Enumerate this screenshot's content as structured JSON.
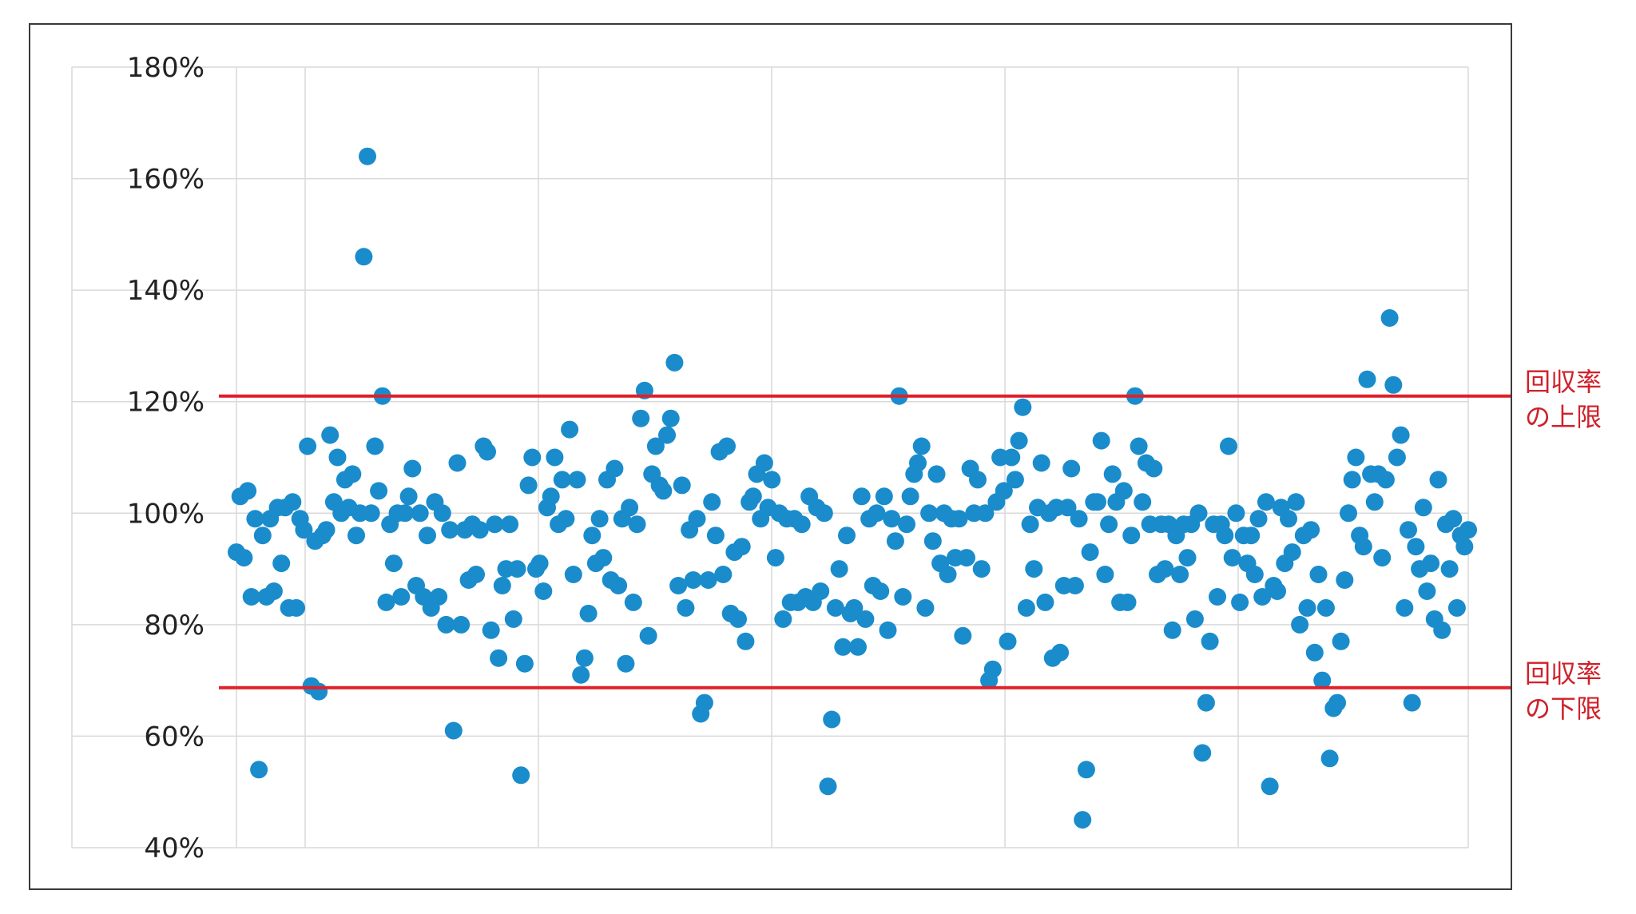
{
  "chart_data": {
    "type": "scatter",
    "ylim": [
      0.4,
      1.8
    ],
    "y_ticks": [
      "40%",
      "60%",
      "80%",
      "100%",
      "120%",
      "140%",
      "160%",
      "180%"
    ],
    "grid": true,
    "marker_color": "#1a8ccc",
    "reference_line_color": "#e0202a",
    "reference_lines": [
      {
        "y": 1.21,
        "label_line1": "回収率",
        "label_line2": "の上限"
      },
      {
        "y": 0.687,
        "label_line1": "回収率",
        "label_line2": "の下限"
      }
    ],
    "points": [
      {
        "x": 1,
        "y": 0.93
      },
      {
        "x": 2,
        "y": 1.03
      },
      {
        "x": 3,
        "y": 0.92
      },
      {
        "x": 4,
        "y": 1.04
      },
      {
        "x": 5,
        "y": 0.85
      },
      {
        "x": 6,
        "y": 0.99
      },
      {
        "x": 7,
        "y": 0.54
      },
      {
        "x": 8,
        "y": 0.96
      },
      {
        "x": 9,
        "y": 0.85
      },
      {
        "x": 10,
        "y": 0.99
      },
      {
        "x": 11,
        "y": 0.86
      },
      {
        "x": 12,
        "y": 1.01
      },
      {
        "x": 13,
        "y": 0.91
      },
      {
        "x": 14,
        "y": 1.01
      },
      {
        "x": 15,
        "y": 0.83
      },
      {
        "x": 16,
        "y": 1.02
      },
      {
        "x": 17,
        "y": 0.83
      },
      {
        "x": 18,
        "y": 0.99
      },
      {
        "x": 19,
        "y": 0.97
      },
      {
        "x": 20,
        "y": 1.12
      },
      {
        "x": 21,
        "y": 0.69
      },
      {
        "x": 22,
        "y": 0.95
      },
      {
        "x": 23,
        "y": 0.68
      },
      {
        "x": 24,
        "y": 0.96
      },
      {
        "x": 25,
        "y": 0.97
      },
      {
        "x": 26,
        "y": 1.14
      },
      {
        "x": 27,
        "y": 1.02
      },
      {
        "x": 28,
        "y": 1.1
      },
      {
        "x": 29,
        "y": 1.0
      },
      {
        "x": 30,
        "y": 1.06
      },
      {
        "x": 31,
        "y": 1.01
      },
      {
        "x": 32,
        "y": 1.07
      },
      {
        "x": 33,
        "y": 0.96
      },
      {
        "x": 34,
        "y": 1.0
      },
      {
        "x": 35,
        "y": 1.46
      },
      {
        "x": 36,
        "y": 1.64
      },
      {
        "x": 37,
        "y": 1.0
      },
      {
        "x": 38,
        "y": 1.12
      },
      {
        "x": 39,
        "y": 1.04
      },
      {
        "x": 40,
        "y": 1.21
      },
      {
        "x": 41,
        "y": 0.84
      },
      {
        "x": 42,
        "y": 0.98
      },
      {
        "x": 43,
        "y": 0.91
      },
      {
        "x": 44,
        "y": 1.0
      },
      {
        "x": 45,
        "y": 0.85
      },
      {
        "x": 46,
        "y": 1.0
      },
      {
        "x": 47,
        "y": 1.03
      },
      {
        "x": 48,
        "y": 1.08
      },
      {
        "x": 49,
        "y": 0.87
      },
      {
        "x": 50,
        "y": 1.0
      },
      {
        "x": 51,
        "y": 0.85
      },
      {
        "x": 52,
        "y": 0.96
      },
      {
        "x": 53,
        "y": 0.83
      },
      {
        "x": 54,
        "y": 1.02
      },
      {
        "x": 55,
        "y": 0.85
      },
      {
        "x": 56,
        "y": 1.0
      },
      {
        "x": 57,
        "y": 0.8
      },
      {
        "x": 58,
        "y": 0.97
      },
      {
        "x": 59,
        "y": 0.61
      },
      {
        "x": 60,
        "y": 1.09
      },
      {
        "x": 61,
        "y": 0.8
      },
      {
        "x": 62,
        "y": 0.97
      },
      {
        "x": 63,
        "y": 0.88
      },
      {
        "x": 64,
        "y": 0.98
      },
      {
        "x": 65,
        "y": 0.89
      },
      {
        "x": 66,
        "y": 0.97
      },
      {
        "x": 67,
        "y": 1.12
      },
      {
        "x": 68,
        "y": 1.11
      },
      {
        "x": 69,
        "y": 0.79
      },
      {
        "x": 70,
        "y": 0.98
      },
      {
        "x": 71,
        "y": 0.74
      },
      {
        "x": 72,
        "y": 0.87
      },
      {
        "x": 73,
        "y": 0.9
      },
      {
        "x": 74,
        "y": 0.98
      },
      {
        "x": 75,
        "y": 0.81
      },
      {
        "x": 76,
        "y": 0.9
      },
      {
        "x": 77,
        "y": 0.53
      },
      {
        "x": 78,
        "y": 0.73
      },
      {
        "x": 79,
        "y": 1.05
      },
      {
        "x": 80,
        "y": 1.1
      },
      {
        "x": 81,
        "y": 0.9
      },
      {
        "x": 82,
        "y": 0.91
      },
      {
        "x": 83,
        "y": 0.86
      },
      {
        "x": 84,
        "y": 1.01
      },
      {
        "x": 85,
        "y": 1.03
      },
      {
        "x": 86,
        "y": 1.1
      },
      {
        "x": 87,
        "y": 0.98
      },
      {
        "x": 88,
        "y": 1.06
      },
      {
        "x": 89,
        "y": 0.99
      },
      {
        "x": 90,
        "y": 1.15
      },
      {
        "x": 91,
        "y": 0.89
      },
      {
        "x": 92,
        "y": 1.06
      },
      {
        "x": 93,
        "y": 0.71
      },
      {
        "x": 94,
        "y": 0.74
      },
      {
        "x": 95,
        "y": 0.82
      },
      {
        "x": 96,
        "y": 0.96
      },
      {
        "x": 97,
        "y": 0.91
      },
      {
        "x": 98,
        "y": 0.99
      },
      {
        "x": 99,
        "y": 0.92
      },
      {
        "x": 100,
        "y": 1.06
      },
      {
        "x": 101,
        "y": 0.88
      },
      {
        "x": 102,
        "y": 1.08
      },
      {
        "x": 103,
        "y": 0.87
      },
      {
        "x": 104,
        "y": 0.99
      },
      {
        "x": 105,
        "y": 0.73
      },
      {
        "x": 106,
        "y": 1.01
      },
      {
        "x": 107,
        "y": 0.84
      },
      {
        "x": 108,
        "y": 0.98
      },
      {
        "x": 109,
        "y": 1.17
      },
      {
        "x": 110,
        "y": 1.22
      },
      {
        "x": 111,
        "y": 0.78
      },
      {
        "x": 112,
        "y": 1.07
      },
      {
        "x": 113,
        "y": 1.12
      },
      {
        "x": 114,
        "y": 1.05
      },
      {
        "x": 115,
        "y": 1.04
      },
      {
        "x": 116,
        "y": 1.14
      },
      {
        "x": 117,
        "y": 1.17
      },
      {
        "x": 118,
        "y": 1.27
      },
      {
        "x": 119,
        "y": 0.87
      },
      {
        "x": 120,
        "y": 1.05
      },
      {
        "x": 121,
        "y": 0.83
      },
      {
        "x": 122,
        "y": 0.97
      },
      {
        "x": 123,
        "y": 0.88
      },
      {
        "x": 124,
        "y": 0.99
      },
      {
        "x": 125,
        "y": 0.64
      },
      {
        "x": 126,
        "y": 0.66
      },
      {
        "x": 127,
        "y": 0.88
      },
      {
        "x": 128,
        "y": 1.02
      },
      {
        "x": 129,
        "y": 0.96
      },
      {
        "x": 130,
        "y": 1.11
      },
      {
        "x": 131,
        "y": 0.89
      },
      {
        "x": 132,
        "y": 1.12
      },
      {
        "x": 133,
        "y": 0.82
      },
      {
        "x": 134,
        "y": 0.93
      },
      {
        "x": 135,
        "y": 0.81
      },
      {
        "x": 136,
        "y": 0.94
      },
      {
        "x": 137,
        "y": 0.77
      },
      {
        "x": 138,
        "y": 1.02
      },
      {
        "x": 139,
        "y": 1.03
      },
      {
        "x": 140,
        "y": 1.07
      },
      {
        "x": 141,
        "y": 0.99
      },
      {
        "x": 142,
        "y": 1.09
      },
      {
        "x": 143,
        "y": 1.01
      },
      {
        "x": 144,
        "y": 1.06
      },
      {
        "x": 145,
        "y": 0.92
      },
      {
        "x": 146,
        "y": 1.0
      },
      {
        "x": 147,
        "y": 0.81
      },
      {
        "x": 148,
        "y": 0.99
      },
      {
        "x": 149,
        "y": 0.84
      },
      {
        "x": 150,
        "y": 0.99
      },
      {
        "x": 151,
        "y": 0.84
      },
      {
        "x": 152,
        "y": 0.98
      },
      {
        "x": 153,
        "y": 0.85
      },
      {
        "x": 154,
        "y": 1.03
      },
      {
        "x": 155,
        "y": 0.84
      },
      {
        "x": 156,
        "y": 1.01
      },
      {
        "x": 157,
        "y": 0.86
      },
      {
        "x": 158,
        "y": 1.0
      },
      {
        "x": 159,
        "y": 0.51
      },
      {
        "x": 160,
        "y": 0.63
      },
      {
        "x": 161,
        "y": 0.83
      },
      {
        "x": 162,
        "y": 0.9
      },
      {
        "x": 163,
        "y": 0.76
      },
      {
        "x": 164,
        "y": 0.96
      },
      {
        "x": 165,
        "y": 0.82
      },
      {
        "x": 166,
        "y": 0.83
      },
      {
        "x": 167,
        "y": 0.76
      },
      {
        "x": 168,
        "y": 1.03
      },
      {
        "x": 169,
        "y": 0.81
      },
      {
        "x": 170,
        "y": 0.99
      },
      {
        "x": 171,
        "y": 0.87
      },
      {
        "x": 172,
        "y": 1.0
      },
      {
        "x": 173,
        "y": 0.86
      },
      {
        "x": 174,
        "y": 1.03
      },
      {
        "x": 175,
        "y": 0.79
      },
      {
        "x": 176,
        "y": 0.99
      },
      {
        "x": 177,
        "y": 0.95
      },
      {
        "x": 178,
        "y": 1.21
      },
      {
        "x": 179,
        "y": 0.85
      },
      {
        "x": 180,
        "y": 0.98
      },
      {
        "x": 181,
        "y": 1.03
      },
      {
        "x": 182,
        "y": 1.07
      },
      {
        "x": 183,
        "y": 1.09
      },
      {
        "x": 184,
        "y": 1.12
      },
      {
        "x": 185,
        "y": 0.83
      },
      {
        "x": 186,
        "y": 1.0
      },
      {
        "x": 187,
        "y": 0.95
      },
      {
        "x": 188,
        "y": 1.07
      },
      {
        "x": 189,
        "y": 0.91
      },
      {
        "x": 190,
        "y": 1.0
      },
      {
        "x": 191,
        "y": 0.89
      },
      {
        "x": 192,
        "y": 0.99
      },
      {
        "x": 193,
        "y": 0.92
      },
      {
        "x": 194,
        "y": 0.99
      },
      {
        "x": 195,
        "y": 0.78
      },
      {
        "x": 196,
        "y": 0.92
      },
      {
        "x": 197,
        "y": 1.08
      },
      {
        "x": 198,
        "y": 1.0
      },
      {
        "x": 199,
        "y": 1.06
      },
      {
        "x": 200,
        "y": 0.9
      },
      {
        "x": 201,
        "y": 1.0
      },
      {
        "x": 202,
        "y": 0.7
      },
      {
        "x": 203,
        "y": 0.72
      },
      {
        "x": 204,
        "y": 1.02
      },
      {
        "x": 205,
        "y": 1.1
      },
      {
        "x": 206,
        "y": 1.04
      },
      {
        "x": 207,
        "y": 0.77
      },
      {
        "x": 208,
        "y": 1.1
      },
      {
        "x": 209,
        "y": 1.06
      },
      {
        "x": 210,
        "y": 1.13
      },
      {
        "x": 211,
        "y": 1.19
      },
      {
        "x": 212,
        "y": 0.83
      },
      {
        "x": 213,
        "y": 0.98
      },
      {
        "x": 214,
        "y": 0.9
      },
      {
        "x": 215,
        "y": 1.01
      },
      {
        "x": 216,
        "y": 1.09
      },
      {
        "x": 217,
        "y": 0.84
      },
      {
        "x": 218,
        "y": 1.0
      },
      {
        "x": 219,
        "y": 0.74
      },
      {
        "x": 220,
        "y": 1.01
      },
      {
        "x": 221,
        "y": 0.75
      },
      {
        "x": 222,
        "y": 0.87
      },
      {
        "x": 223,
        "y": 1.01
      },
      {
        "x": 224,
        "y": 1.08
      },
      {
        "x": 225,
        "y": 0.87
      },
      {
        "x": 226,
        "y": 0.99
      },
      {
        "x": 227,
        "y": 0.45
      },
      {
        "x": 228,
        "y": 0.54
      },
      {
        "x": 229,
        "y": 0.93
      },
      {
        "x": 230,
        "y": 1.02
      },
      {
        "x": 231,
        "y": 1.02
      },
      {
        "x": 232,
        "y": 1.13
      },
      {
        "x": 233,
        "y": 0.89
      },
      {
        "x": 234,
        "y": 0.98
      },
      {
        "x": 235,
        "y": 1.07
      },
      {
        "x": 236,
        "y": 1.02
      },
      {
        "x": 237,
        "y": 0.84
      },
      {
        "x": 238,
        "y": 1.04
      },
      {
        "x": 239,
        "y": 0.84
      },
      {
        "x": 240,
        "y": 0.96
      },
      {
        "x": 241,
        "y": 1.21
      },
      {
        "x": 242,
        "y": 1.12
      },
      {
        "x": 243,
        "y": 1.02
      },
      {
        "x": 244,
        "y": 1.09
      },
      {
        "x": 245,
        "y": 0.98
      },
      {
        "x": 246,
        "y": 1.08
      },
      {
        "x": 247,
        "y": 0.89
      },
      {
        "x": 248,
        "y": 0.98
      },
      {
        "x": 249,
        "y": 0.9
      },
      {
        "x": 250,
        "y": 0.98
      },
      {
        "x": 251,
        "y": 0.79
      },
      {
        "x": 252,
        "y": 0.96
      },
      {
        "x": 253,
        "y": 0.89
      },
      {
        "x": 254,
        "y": 0.98
      },
      {
        "x": 255,
        "y": 0.92
      },
      {
        "x": 256,
        "y": 0.98
      },
      {
        "x": 257,
        "y": 0.81
      },
      {
        "x": 258,
        "y": 1.0
      },
      {
        "x": 259,
        "y": 0.57
      },
      {
        "x": 260,
        "y": 0.66
      },
      {
        "x": 261,
        "y": 0.77
      },
      {
        "x": 262,
        "y": 0.98
      },
      {
        "x": 263,
        "y": 0.85
      },
      {
        "x": 264,
        "y": 0.98
      },
      {
        "x": 265,
        "y": 0.96
      },
      {
        "x": 266,
        "y": 1.12
      },
      {
        "x": 267,
        "y": 0.92
      },
      {
        "x": 268,
        "y": 1.0
      },
      {
        "x": 269,
        "y": 0.84
      },
      {
        "x": 270,
        "y": 0.96
      },
      {
        "x": 271,
        "y": 0.91
      },
      {
        "x": 272,
        "y": 0.96
      },
      {
        "x": 273,
        "y": 0.89
      },
      {
        "x": 274,
        "y": 0.99
      },
      {
        "x": 275,
        "y": 0.85
      },
      {
        "x": 276,
        "y": 1.02
      },
      {
        "x": 277,
        "y": 0.51
      },
      {
        "x": 278,
        "y": 0.87
      },
      {
        "x": 279,
        "y": 0.86
      },
      {
        "x": 280,
        "y": 1.01
      },
      {
        "x": 281,
        "y": 0.91
      },
      {
        "x": 282,
        "y": 0.99
      },
      {
        "x": 283,
        "y": 0.93
      },
      {
        "x": 284,
        "y": 1.02
      },
      {
        "x": 285,
        "y": 0.8
      },
      {
        "x": 286,
        "y": 0.96
      },
      {
        "x": 287,
        "y": 0.83
      },
      {
        "x": 288,
        "y": 0.97
      },
      {
        "x": 289,
        "y": 0.75
      },
      {
        "x": 290,
        "y": 0.89
      },
      {
        "x": 291,
        "y": 0.7
      },
      {
        "x": 292,
        "y": 0.83
      },
      {
        "x": 293,
        "y": 0.56
      },
      {
        "x": 294,
        "y": 0.65
      },
      {
        "x": 295,
        "y": 0.66
      },
      {
        "x": 296,
        "y": 0.77
      },
      {
        "x": 297,
        "y": 0.88
      },
      {
        "x": 298,
        "y": 1.0
      },
      {
        "x": 299,
        "y": 1.06
      },
      {
        "x": 300,
        "y": 1.1
      },
      {
        "x": 301,
        "y": 0.96
      },
      {
        "x": 302,
        "y": 0.94
      },
      {
        "x": 303,
        "y": 1.24
      },
      {
        "x": 304,
        "y": 1.07
      },
      {
        "x": 305,
        "y": 1.02
      },
      {
        "x": 306,
        "y": 1.07
      },
      {
        "x": 307,
        "y": 0.92
      },
      {
        "x": 308,
        "y": 1.06
      },
      {
        "x": 309,
        "y": 1.35
      },
      {
        "x": 310,
        "y": 1.23
      },
      {
        "x": 311,
        "y": 1.1
      },
      {
        "x": 312,
        "y": 1.14
      },
      {
        "x": 313,
        "y": 0.83
      },
      {
        "x": 314,
        "y": 0.97
      },
      {
        "x": 315,
        "y": 0.66
      },
      {
        "x": 316,
        "y": 0.94
      },
      {
        "x": 317,
        "y": 0.9
      },
      {
        "x": 318,
        "y": 1.01
      },
      {
        "x": 319,
        "y": 0.86
      },
      {
        "x": 320,
        "y": 0.91
      },
      {
        "x": 321,
        "y": 0.81
      },
      {
        "x": 322,
        "y": 1.06
      },
      {
        "x": 323,
        "y": 0.79
      },
      {
        "x": 324,
        "y": 0.98
      },
      {
        "x": 325,
        "y": 0.9
      },
      {
        "x": 326,
        "y": 0.99
      },
      {
        "x": 327,
        "y": 0.83
      },
      {
        "x": 328,
        "y": 0.96
      },
      {
        "x": 329,
        "y": 0.94
      },
      {
        "x": 330,
        "y": 0.97
      }
    ]
  }
}
